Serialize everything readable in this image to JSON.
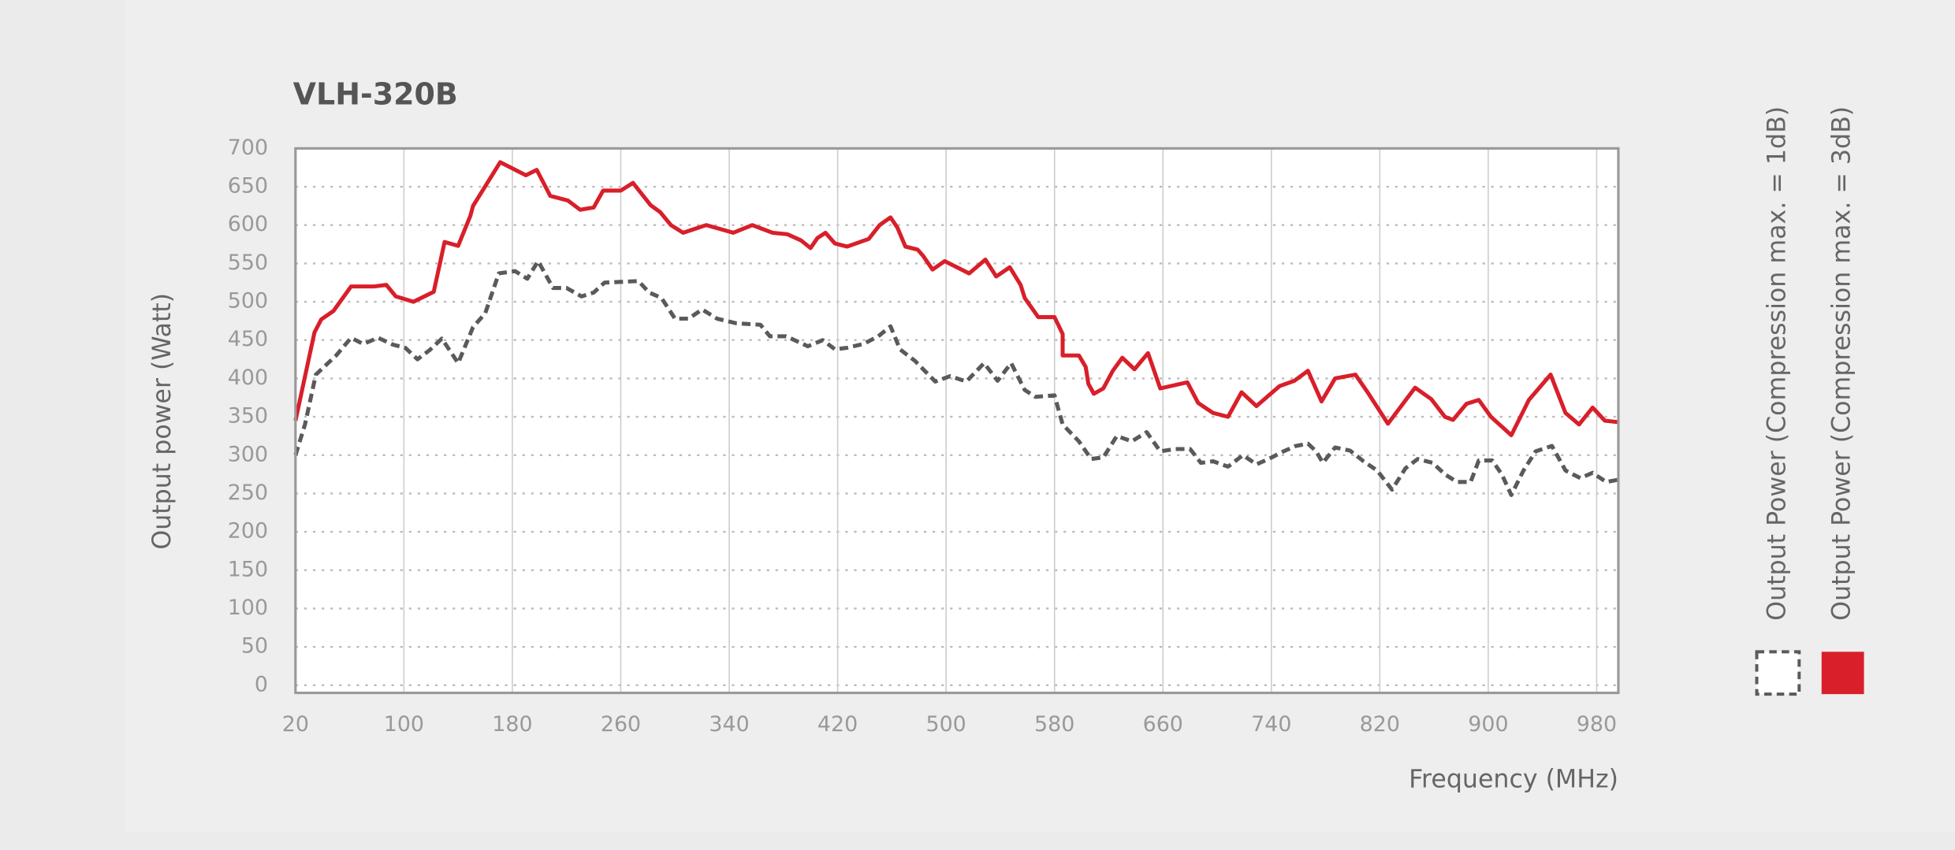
{
  "chart_data": {
    "type": "line",
    "title": "VLH-320B",
    "x_label": "Frequency (MHz)",
    "y_label": "Output power (Watt)",
    "xlim": [
      20,
      996
    ],
    "xticks": [
      20,
      100,
      180,
      260,
      340,
      420,
      500,
      580,
      660,
      740,
      820,
      900,
      980
    ],
    "ylim": [
      -10,
      700
    ],
    "yticks": [
      0,
      50,
      100,
      150,
      200,
      250,
      300,
      350,
      400,
      450,
      500,
      550,
      600,
      650,
      700
    ],
    "grid": true,
    "legend": "right",
    "series": [
      {
        "name": "Output Power (Compression max. = 1dB)",
        "color": "#5a5a5a",
        "line_style": "dashed",
        "x": [
          20,
          27,
          35,
          50,
          61,
          70,
          81,
          92,
          101,
          110,
          119,
          128,
          140,
          151,
          160,
          170,
          182,
          191,
          199,
          210,
          220,
          231,
          240,
          248,
          273,
          281,
          290,
          300,
          310,
          320,
          331,
          345,
          363,
          370,
          382,
          398,
          409,
          418,
          427,
          439,
          450,
          459,
          466,
          477,
          492,
          503,
          515,
          528,
          538,
          548,
          558,
          566,
          580,
          586,
          598,
          607,
          616,
          626,
          637,
          648,
          658,
          669,
          680,
          688,
          697,
          708,
          719,
          729,
          738,
          749,
          758,
          767,
          773,
          778,
          787,
          798,
          808,
          818,
          829,
          839,
          848,
          859,
          868,
          877,
          887,
          893,
          903,
          910,
          917,
          926,
          935,
          947,
          957,
          968,
          977,
          987,
          996
        ],
        "values": [
          300,
          340,
          405,
          430,
          453,
          445,
          453,
          444,
          440,
          425,
          437,
          452,
          420,
          467,
          485,
          537,
          540,
          530,
          553,
          518,
          518,
          507,
          512,
          525,
          527,
          512,
          505,
          478,
          478,
          490,
          478,
          472,
          470,
          455,
          455,
          442,
          450,
          438,
          440,
          445,
          455,
          468,
          438,
          423,
          396,
          403,
          396,
          420,
          397,
          420,
          385,
          376,
          378,
          340,
          318,
          295,
          297,
          325,
          318,
          330,
          305,
          308,
          308,
          290,
          292,
          285,
          300,
          288,
          295,
          305,
          312,
          315,
          305,
          290,
          310,
          306,
          292,
          280,
          255,
          283,
          295,
          290,
          275,
          265,
          265,
          293,
          293,
          275,
          248,
          280,
          305,
          312,
          280,
          270,
          277,
          265,
          268
        ]
      },
      {
        "name": "Output Power (Compression max. = 3dB)",
        "color": "#d81f2a",
        "line_style": "solid",
        "x": [
          20,
          34,
          39,
          48,
          61,
          78,
          87,
          94,
          107,
          122,
          130,
          140,
          149,
          151,
          171,
          190,
          198,
          208,
          221,
          230,
          240,
          247,
          260,
          269,
          282,
          289,
          297,
          306,
          323,
          343,
          357,
          372,
          383,
          393,
          400,
          405,
          411,
          418,
          427,
          443,
          451,
          459,
          464,
          470,
          479,
          483,
          490,
          499,
          517,
          529,
          537,
          547,
          555,
          558,
          568,
          579,
          580,
          586,
          586,
          598,
          603,
          605,
          609,
          616,
          623,
          630,
          639,
          649,
          658,
          678,
          686,
          697,
          708,
          718,
          729,
          746,
          757,
          767,
          777,
          787,
          802,
          811,
          826,
          846,
          858,
          868,
          874,
          884,
          893,
          902,
          917,
          930,
          946,
          957,
          967,
          977,
          986,
          996
        ],
        "values": [
          345,
          460,
          477,
          488,
          520,
          520,
          522,
          507,
          500,
          513,
          578,
          573,
          612,
          625,
          682,
          665,
          672,
          638,
          632,
          620,
          623,
          645,
          645,
          655,
          626,
          617,
          600,
          590,
          600,
          590,
          600,
          590,
          588,
          580,
          570,
          583,
          590,
          576,
          572,
          582,
          600,
          610,
          597,
          572,
          568,
          560,
          542,
          553,
          537,
          555,
          533,
          545,
          522,
          505,
          480,
          480,
          480,
          458,
          430,
          430,
          415,
          393,
          380,
          387,
          410,
          427,
          412,
          433,
          387,
          395,
          368,
          355,
          350,
          382,
          364,
          390,
          397,
          410,
          370,
          400,
          405,
          382,
          341,
          388,
          373,
          350,
          346,
          367,
          372,
          350,
          326,
          372,
          405,
          355,
          340,
          362,
          345,
          343
        ]
      }
    ]
  }
}
